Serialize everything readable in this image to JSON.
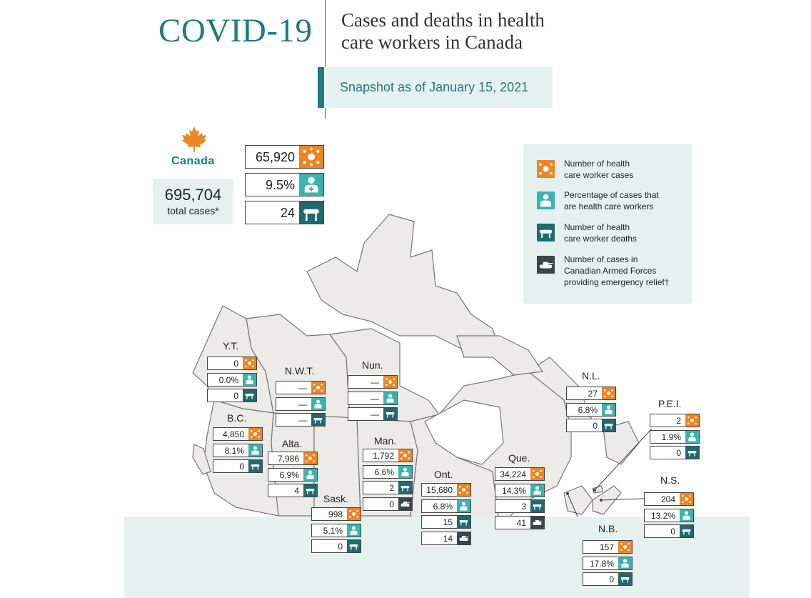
{
  "header": {
    "title": "COVID-19",
    "subtitle_line1": "Cases and deaths in health",
    "subtitle_line2": "care workers in Canada",
    "snapshot": "Snapshot as of January 15, 2021"
  },
  "national": {
    "label": "Canada",
    "total_cases": "695,704",
    "total_cases_label": "total cases*",
    "hcw_cases": "65,920",
    "hcw_percent": "9.5%",
    "hcw_deaths": "24"
  },
  "legend": {
    "cases": "Number of health care worker cases",
    "percent": "Percentage of cases that are health care workers",
    "deaths": "Number of health care worker deaths",
    "caf": "Number of cases in Canadian Armed Forces providing emergency relief†"
  },
  "legend_lines": {
    "cases": [
      "Number of health",
      "care worker cases"
    ],
    "percent": [
      "Percentage of cases that",
      "are health care workers"
    ],
    "deaths": [
      "Number of health",
      "care worker deaths"
    ],
    "caf": [
      "Number of cases in",
      "Canadian Armed Forces",
      "providing emergency relief†"
    ]
  },
  "provinces": [
    {
      "name": "Y.T.",
      "cases": "0",
      "percent": "0.0%",
      "deaths": "0"
    },
    {
      "name": "N.W.T.",
      "cases": "—",
      "percent": "—",
      "deaths": "—"
    },
    {
      "name": "Nun.",
      "cases": "—",
      "percent": "—",
      "deaths": "—"
    },
    {
      "name": "B.C.",
      "cases": "4,850",
      "percent": "8.1%",
      "deaths": "0"
    },
    {
      "name": "Alta.",
      "cases": "7,986",
      "percent": "6.9%",
      "deaths": "4"
    },
    {
      "name": "Sask.",
      "cases": "998",
      "percent": "5.1%",
      "deaths": "0"
    },
    {
      "name": "Man.",
      "cases": "1,792",
      "percent": "6.6%",
      "deaths": "2",
      "caf": "0"
    },
    {
      "name": "Ont.",
      "cases": "15,680",
      "percent": "6.8%",
      "deaths": "15",
      "caf": "14"
    },
    {
      "name": "Que.",
      "cases": "34,224",
      "percent": "14.3%",
      "deaths": "3",
      "caf": "41"
    },
    {
      "name": "N.L.",
      "cases": "27",
      "percent": "6.8%",
      "deaths": "0"
    },
    {
      "name": "P.E.I.",
      "cases": "2",
      "percent": "1.9%",
      "deaths": "0"
    },
    {
      "name": "N.S.",
      "cases": "204",
      "percent": "13.2%",
      "deaths": "0"
    },
    {
      "name": "N.B.",
      "cases": "157",
      "percent": "17.8%",
      "deaths": "0"
    }
  ],
  "colors": {
    "brand": "#1f7a80",
    "cases_icon": "#ef8424",
    "percent_icon": "#3bb3b1",
    "deaths_icon": "#1f6a70",
    "caf_icon": "#37474a",
    "panel_bg": "#e6f1ef",
    "land": "#ecebe8"
  },
  "icons": {
    "cases": "virus-icon",
    "percent": "health-worker-icon",
    "deaths": "stretcher-icon",
    "caf": "tank-icon",
    "national": "maple-leaf-icon"
  }
}
